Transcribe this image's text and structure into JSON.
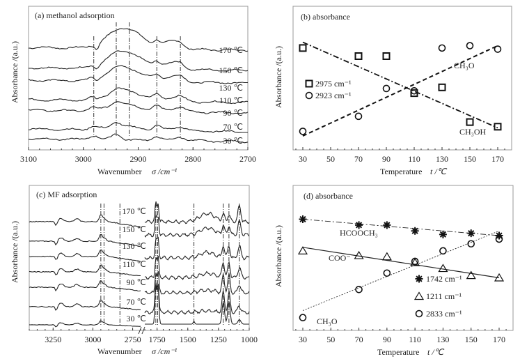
{
  "chart_data": [
    {
      "id": "a",
      "type": "line",
      "title": "(a) methanol adsorption",
      "xlabel": "Wavenumber",
      "xlabel_symbol": "σ /cm⁻¹",
      "ylabel": "Absorbance /(a.u.)",
      "xlim": [
        3100,
        2700
      ],
      "xticks": [
        3100,
        3000,
        2900,
        2800,
        2700
      ],
      "reference_lines": [
        2981,
        2940,
        2916,
        2866,
        2823
      ],
      "series": [
        {
          "name": "170 ℃"
        },
        {
          "name": "150 ℃"
        },
        {
          "name": "130 ℃"
        },
        {
          "name": "110 ℃"
        },
        {
          "name": "90 ℃"
        },
        {
          "name": "70 ℃"
        },
        {
          "name": "30 ℃"
        }
      ]
    },
    {
      "id": "b",
      "type": "scatter",
      "title": "(b) absorbance",
      "xlabel": "Temperature",
      "xlabel_symbol": "t /℃",
      "ylabel": "Absorbance /(a.u.)",
      "xlim": [
        20,
        180
      ],
      "ylim": [
        0,
        1
      ],
      "xticks": [
        30,
        50,
        70,
        90,
        110,
        130,
        150,
        170
      ],
      "legend_position": "middle-left",
      "series": [
        {
          "name": "2975 cm⁻¹",
          "marker": "square",
          "x": [
            30,
            70,
            90,
            110,
            130,
            150,
            170
          ],
          "y": [
            0.82,
            0.75,
            0.75,
            0.43,
            0.48,
            0.18,
            0.14
          ],
          "trend": {
            "style": "dash-dot",
            "from": [
              30,
              0.87
            ],
            "to": [
              170,
              0.13
            ],
            "label": "CH₃OH"
          }
        },
        {
          "name": "2923 cm⁻¹",
          "marker": "circle",
          "x": [
            30,
            70,
            90,
            110,
            130,
            150,
            170
          ],
          "y": [
            0.1,
            0.23,
            0.47,
            0.45,
            0.82,
            0.84,
            0.81
          ],
          "trend": {
            "style": "dashed",
            "from": [
              30,
              0.06
            ],
            "to": [
              170,
              0.84
            ],
            "label": "CH₃O"
          }
        }
      ]
    },
    {
      "id": "c",
      "type": "line",
      "title": "(c) MF adsorption",
      "xlabel": "Wavenumber",
      "xlabel_symbol": "σ /cm⁻¹",
      "ylabel": "Absorbance /(a.u.)",
      "xlim_segment1": [
        3400,
        2700
      ],
      "xlim_segment2": [
        1850,
        1000
      ],
      "xticks": [
        "3250",
        "3000",
        "2750",
        "1750",
        "1500",
        "1250",
        "1000"
      ],
      "axis_break": "2700 / 1850",
      "reference_lines": [
        2950,
        2930,
        2830,
        1760,
        1745,
        1450,
        1211,
        1165,
        1080
      ],
      "series": [
        {
          "name": "170 ℃"
        },
        {
          "name": "150 ℃"
        },
        {
          "name": "130 ℃"
        },
        {
          "name": "110 ℃"
        },
        {
          "name": "90 ℃"
        },
        {
          "name": "70 ℃"
        },
        {
          "name": "30 ℃"
        }
      ]
    },
    {
      "id": "d",
      "type": "scatter",
      "title": "(d) absorbance",
      "xlabel": "Temperature",
      "xlabel_symbol": "t /℃",
      "ylabel": "Absorbance /(a.u.)",
      "xlim": [
        20,
        180
      ],
      "ylim": [
        0,
        1
      ],
      "xticks": [
        30,
        50,
        70,
        90,
        110,
        130,
        150,
        170
      ],
      "legend_position": "bottom-right",
      "series": [
        {
          "name": "1742 cm⁻¹",
          "marker": "asterisk",
          "x": [
            30,
            70,
            90,
            110,
            130,
            150,
            170
          ],
          "y": [
            0.89,
            0.84,
            0.84,
            0.79,
            0.76,
            0.77,
            0.75
          ],
          "trend": {
            "style": "dash-dot",
            "from": [
              30,
              0.89
            ],
            "to": [
              170,
              0.75
            ],
            "label": "HCOOCH₃"
          }
        },
        {
          "name": "1211 cm⁻¹",
          "marker": "triangle",
          "x": [
            30,
            70,
            90,
            110,
            130,
            150,
            170
          ],
          "y": [
            0.62,
            0.58,
            0.57,
            0.52,
            0.47,
            0.41,
            0.39
          ],
          "trend": {
            "style": "solid",
            "from": [
              30,
              0.65
            ],
            "to": [
              170,
              0.39
            ],
            "label": "COO⁻"
          }
        },
        {
          "name": "2833 cm⁻¹",
          "marker": "circle",
          "x": [
            30,
            70,
            90,
            110,
            130,
            150,
            170
          ],
          "y": [
            0.05,
            0.29,
            0.43,
            0.53,
            0.62,
            0.68,
            0.72
          ],
          "trend": {
            "style": "dotted",
            "from": [
              30,
              0.11
            ],
            "to": [
              170,
              0.79
            ],
            "label": "CH₃O"
          }
        }
      ]
    }
  ]
}
